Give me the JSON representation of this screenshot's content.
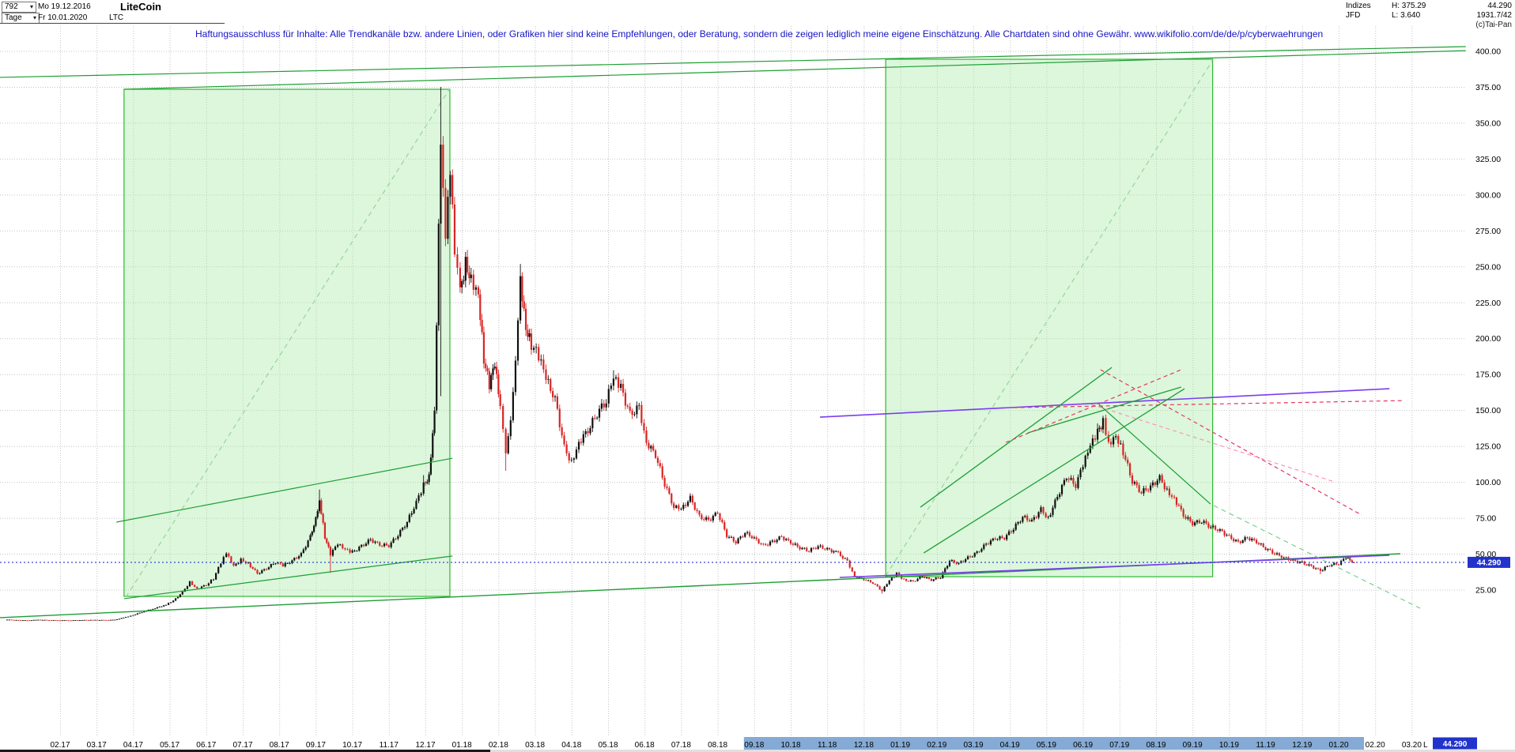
{
  "icons": {
    "caret_down": "▾"
  },
  "header": {
    "bars_count": "792",
    "start_date": "Mo 19.12.2016",
    "period": "Tage",
    "end_date": "Fr 10.01.2020",
    "symbol": "LTC",
    "title": "LiteCoin",
    "right": {
      "index_label": "Indizes",
      "high": "H: 375.29",
      "last_value": "44.290",
      "provider": "JFD",
      "low": "L: 3.640",
      "extra_value": "1931.7/42",
      "copyright": "(c)Tai-Pan"
    }
  },
  "disclaimer": "Haftungsausschluss für Inhalte: Alle Trendkanäle bzw. andere Linien, oder Grafiken hier sind keine Empfehlungen, oder Beratung, sondern die zeigen lediglich meine eigene Einschätzung. Alle Chartdaten sind ohne Gewähr.  www.wikifolio.com/de/de/p/cyberwaehrungen",
  "price_badge": "44.290",
  "bottom_right": {
    "label": "L",
    "value": "44.290"
  },
  "chart_data": {
    "type": "candlestick",
    "title": "LiteCoin",
    "timeframe": "Tage",
    "high": 375.29,
    "low": 3.64,
    "last_price": 44.29,
    "y_axis": {
      "min": 25,
      "max": 400,
      "step": 25
    },
    "x_labels": [
      "02.17",
      "03.17",
      "04.17",
      "05.17",
      "06.17",
      "07.17",
      "08.17",
      "09.17",
      "10.17",
      "11.17",
      "12.17",
      "01.18",
      "02.18",
      "03.18",
      "04.18",
      "05.18",
      "06.18",
      "07.18",
      "08.18",
      "09.18",
      "10.18",
      "11.18",
      "12.18",
      "01.19",
      "02.19",
      "03.19",
      "04.19",
      "05.19",
      "06.19",
      "07.19",
      "08.19",
      "09.19",
      "10.19",
      "11.19",
      "12.19",
      "01.20",
      "02.20",
      "03.20"
    ],
    "x_highlight": {
      "from": "09.18",
      "to": "01.20",
      "start_index": 19,
      "end_index": 35,
      "color": "#85aad5"
    },
    "colors": {
      "up": "#101010",
      "down": "#d92525",
      "grid": "#c4c4c4",
      "box_fill": "rgba(167,236,167,0.40)",
      "box_border": "#2eb82e",
      "green": "#1d9e33",
      "dashgreen": "#98d49a",
      "dashgreen2": "#79cf92",
      "violet": "#7a3df0",
      "red": "#e8365e",
      "pink": "#ff93b8",
      "blue": "#2233cc"
    },
    "close_waypoints": [
      [
        -1.45,
        4.4
      ],
      [
        -1.2,
        4.1
      ],
      [
        -0.9,
        3.9,
        null,
        3.64
      ],
      [
        -0.6,
        4.3
      ],
      [
        -0.3,
        4.1
      ],
      [
        0,
        4.0
      ],
      [
        0.3,
        3.9
      ],
      [
        0.6,
        4.1
      ],
      [
        0.9,
        4.2
      ],
      [
        1.2,
        4.1
      ],
      [
        1.5,
        4.3
      ],
      [
        1.8,
        6.2
      ],
      [
        2.0,
        7.6
      ],
      [
        2.3,
        10.2
      ],
      [
        2.6,
        12.4
      ],
      [
        2.9,
        14.8
      ],
      [
        3.1,
        17.5
      ],
      [
        3.35,
        23.5
      ],
      [
        3.55,
        30.5
      ],
      [
        3.75,
        26.0
      ],
      [
        4.0,
        28.5
      ],
      [
        4.2,
        33.0
      ],
      [
        4.4,
        44.0
      ],
      [
        4.55,
        50.5
      ],
      [
        4.75,
        41.5
      ],
      [
        4.95,
        46.0
      ],
      [
        5.15,
        43.5
      ],
      [
        5.4,
        36.5
      ],
      [
        5.65,
        40.0
      ],
      [
        5.9,
        44.5
      ],
      [
        6.1,
        42.0
      ],
      [
        6.35,
        45.5
      ],
      [
        6.6,
        50.0
      ],
      [
        6.85,
        62.0
      ],
      [
        7.0,
        75.0
      ],
      [
        7.1,
        88.0,
        95.0
      ],
      [
        7.25,
        62.0
      ],
      [
        7.4,
        50.0,
        null,
        37.0
      ],
      [
        7.6,
        57.0
      ],
      [
        7.8,
        53.0
      ],
      [
        8.0,
        51.5
      ],
      [
        8.25,
        55.5
      ],
      [
        8.5,
        60.0
      ],
      [
        8.75,
        56.5
      ],
      [
        9.0,
        56.0
      ],
      [
        9.25,
        63.5
      ],
      [
        9.5,
        72.5
      ],
      [
        9.75,
        86.0
      ],
      [
        9.95,
        98.0,
        105.0
      ],
      [
        10.1,
        104.0
      ],
      [
        10.25,
        150.0
      ],
      [
        10.42,
        340.0,
        375.29,
        160.0
      ],
      [
        10.55,
        275.0
      ],
      [
        10.68,
        318.0
      ],
      [
        10.8,
        258.0
      ],
      [
        10.95,
        232.0
      ],
      [
        11.1,
        252.0
      ],
      [
        11.25,
        242.0
      ],
      [
        11.45,
        232.0
      ],
      [
        11.6,
        186.0
      ],
      [
        11.75,
        168.0
      ],
      [
        11.9,
        182.0
      ],
      [
        12.05,
        152.0
      ],
      [
        12.2,
        118.0,
        null,
        108.0
      ],
      [
        12.4,
        160.0
      ],
      [
        12.6,
        242.0,
        252.0
      ],
      [
        12.75,
        208.0
      ],
      [
        12.9,
        196.0
      ],
      [
        13.1,
        188.0
      ],
      [
        13.3,
        172.0
      ],
      [
        13.55,
        158.0
      ],
      [
        13.8,
        124.0
      ],
      [
        14.0,
        114.0
      ],
      [
        14.2,
        128.0
      ],
      [
        14.45,
        136.0
      ],
      [
        14.7,
        148.0
      ],
      [
        14.95,
        157.0
      ],
      [
        15.15,
        172.0,
        178.0
      ],
      [
        15.35,
        166.0
      ],
      [
        15.6,
        147.0
      ],
      [
        15.85,
        152.0
      ],
      [
        16.05,
        128.0
      ],
      [
        16.3,
        119.0
      ],
      [
        16.55,
        99.0
      ],
      [
        16.8,
        83.0
      ],
      [
        17.0,
        81.0
      ],
      [
        17.25,
        89.0
      ],
      [
        17.5,
        76.0
      ],
      [
        17.75,
        73.5
      ],
      [
        18.0,
        79.0
      ],
      [
        18.25,
        63.0
      ],
      [
        18.5,
        58.5
      ],
      [
        18.75,
        65.0
      ],
      [
        19.0,
        61.0
      ],
      [
        19.25,
        56.0
      ],
      [
        19.5,
        58.5
      ],
      [
        19.75,
        62.0
      ],
      [
        20.0,
        58.0
      ],
      [
        20.25,
        54.5
      ],
      [
        20.5,
        52.5
      ],
      [
        20.75,
        55.5
      ],
      [
        21.0,
        53.5
      ],
      [
        21.3,
        50.5
      ],
      [
        21.55,
        45.0
      ],
      [
        21.75,
        34.5
      ],
      [
        22.0,
        32.5
      ],
      [
        22.25,
        30.0
      ],
      [
        22.5,
        24.5,
        null,
        22.5
      ],
      [
        22.7,
        31.5
      ],
      [
        22.9,
        36.5
      ],
      [
        23.1,
        32.0
      ],
      [
        23.35,
        31.0
      ],
      [
        23.6,
        34.5
      ],
      [
        23.85,
        32.0
      ],
      [
        24.1,
        34.0
      ],
      [
        24.35,
        45.5
      ],
      [
        24.6,
        43.5
      ],
      [
        24.85,
        47.5
      ],
      [
        25.1,
        51.0
      ],
      [
        25.35,
        57.0
      ],
      [
        25.6,
        61.0
      ],
      [
        25.85,
        61.5
      ],
      [
        26.1,
        68.0
      ],
      [
        26.35,
        76.0
      ],
      [
        26.6,
        73.0
      ],
      [
        26.85,
        81.0
      ],
      [
        27.05,
        75.0
      ],
      [
        27.3,
        90.0
      ],
      [
        27.55,
        104.0
      ],
      [
        27.8,
        98.0
      ],
      [
        28.0,
        112.0
      ],
      [
        28.2,
        125.0
      ],
      [
        28.4,
        135.0,
        141.0
      ],
      [
        28.55,
        142.0,
        146.4
      ],
      [
        28.7,
        127.0
      ],
      [
        28.9,
        133.0
      ],
      [
        29.1,
        121.0
      ],
      [
        29.35,
        101.0
      ],
      [
        29.6,
        93.0
      ],
      [
        29.85,
        97.0
      ],
      [
        30.1,
        103.0
      ],
      [
        30.3,
        94.0
      ],
      [
        30.5,
        89.0
      ],
      [
        30.75,
        77.0
      ],
      [
        31.0,
        71.5
      ],
      [
        31.25,
        73.0
      ],
      [
        31.5,
        69.0
      ],
      [
        31.75,
        66.5
      ],
      [
        32.0,
        62.0
      ],
      [
        32.25,
        58.0
      ],
      [
        32.5,
        61.5
      ],
      [
        32.75,
        58.5
      ],
      [
        33.0,
        54.0
      ],
      [
        33.25,
        50.5
      ],
      [
        33.5,
        47.5
      ],
      [
        33.75,
        45.5
      ],
      [
        34.0,
        44.0
      ],
      [
        34.25,
        41.5
      ],
      [
        34.5,
        38.5,
        null,
        36.0
      ],
      [
        34.75,
        42.5
      ],
      [
        35.0,
        43.5
      ],
      [
        35.2,
        47.5
      ],
      [
        35.42,
        44.29
      ]
    ],
    "annotations": {
      "boxes": [
        {
          "t1": 1.75,
          "p1": 20.6,
          "t2": 10.67,
          "p2": 373.6
        },
        {
          "t1": 22.6,
          "p1": 34.3,
          "t2": 31.55,
          "p2": 394.5
        }
      ],
      "lines": [
        {
          "t1": 1.75,
          "p1": 373.6,
          "t2": 38.48,
          "p2": 400.5,
          "color": "green",
          "width": 1.2
        },
        {
          "t1": -1.65,
          "p1": 381.9,
          "t2": 38.48,
          "p2": 403.3,
          "color": "green",
          "width": 1.2
        },
        {
          "t1": 1.54,
          "p1": 72.3,
          "t2": 10.74,
          "p2": 116.8,
          "color": "green",
          "width": 1.2
        },
        {
          "t1": 1.75,
          "p1": 19.0,
          "t2": 10.74,
          "p2": 48.7,
          "color": "green",
          "width": 1.2
        },
        {
          "t1": -1.65,
          "p1": 5.8,
          "t2": 36.69,
          "p2": 50.3,
          "color": "green",
          "width": 1.4
        },
        {
          "t1": 1.8,
          "p1": 20.0,
          "t2": 10.67,
          "p2": 374.2,
          "color": "dashgreen",
          "dash": "6 5",
          "behind": true,
          "width": 1.2
        },
        {
          "t1": 22.6,
          "p1": 34.9,
          "t2": 31.54,
          "p2": 393.4,
          "color": "dashgreen",
          "dash": "6 5",
          "behind": true,
          "width": 1.2
        },
        {
          "t1": 20.8,
          "p1": 145.4,
          "t2": 36.39,
          "p2": 165.2,
          "color": "violet",
          "width": 1.6
        },
        {
          "t1": 21.34,
          "p1": 33.8,
          "t2": 36.39,
          "p2": 49.2,
          "color": "violet",
          "width": 1.6
        },
        {
          "t1": 26.1,
          "p1": 152.0,
          "t2": 36.8,
          "p2": 156.9,
          "color": "red",
          "dash": "5 4",
          "width": 1.2
        },
        {
          "t1": 23.55,
          "p1": 82.7,
          "t2": 28.79,
          "p2": 180.0,
          "color": "green",
          "width": 1.3
        },
        {
          "t1": 23.64,
          "p1": 50.8,
          "t2": 30.78,
          "p2": 165.2,
          "color": "green",
          "width": 1.3
        },
        {
          "t1": 26.49,
          "p1": 134.4,
          "t2": 30.69,
          "p2": 166.3,
          "color": "green",
          "width": 1.3
        },
        {
          "t1": 28.48,
          "p1": 178.4,
          "t2": 35.63,
          "p2": 77.2,
          "color": "red",
          "dash": "5 4",
          "width": 1.2
        },
        {
          "t1": 28.23,
          "p1": 154.2,
          "t2": 34.89,
          "p2": 100.3,
          "color": "pink",
          "dash": "5 4",
          "width": 1.2
        },
        {
          "t1": 28.44,
          "p1": 154.2,
          "t2": 31.49,
          "p2": 84.9,
          "color": "green",
          "width": 1.2
        },
        {
          "t1": 31.58,
          "p1": 83.8,
          "t2": 37.23,
          "p2": 12.3,
          "color": "dashgreen2",
          "dash": "6 5",
          "width": 1.2
        },
        {
          "t1": 25.89,
          "p1": 127.8,
          "t2": 30.69,
          "p2": 178.4,
          "color": "red",
          "dash": "5 4",
          "width": 1.2
        }
      ],
      "hline": {
        "price": 44.29
      }
    }
  }
}
